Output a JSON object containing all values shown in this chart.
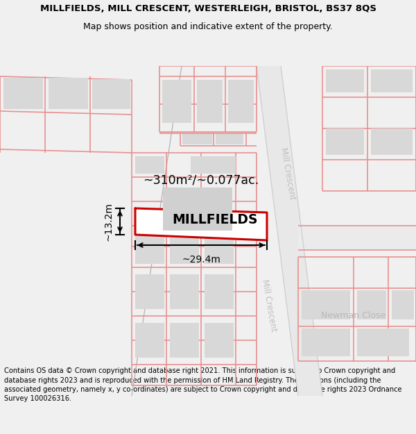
{
  "title_line1": "MILLFIELDS, MILL CRESCENT, WESTERLEIGH, BRISTOL, BS37 8QS",
  "title_line2": "Map shows position and indicative extent of the property.",
  "footer_text": "Contains OS data © Crown copyright and database right 2021. This information is subject to Crown copyright and database rights 2023 and is reproduced with the permission of HM Land Registry. The polygons (including the associated geometry, namely x, y co-ordinates) are subject to Crown copyright and database rights 2023 Ordnance Survey 100026316.",
  "property_label": "MILLFIELDS",
  "area_label": "~310m²/~0.077ac.",
  "width_label": "~29.4m",
  "height_label": "~13.2m",
  "bg_color": "#f0f0f0",
  "map_bg": "#ffffff",
  "plot_line_color": "#e89090",
  "building_color": "#d8d8d8",
  "road_fill_color": "#f0f0f0",
  "road_edge_color": "#d8d8d8",
  "mc_label_color": "#c0c0c0",
  "nc_label_color": "#b8b8b8",
  "property_color": "#cc0000",
  "dim_color": "#000000",
  "title_fontsize": 9.5,
  "subtitle_fontsize": 9.0,
  "footer_fontsize": 7.1,
  "label_fontsize": 13,
  "area_fontsize": 12,
  "dim_fontsize": 10
}
